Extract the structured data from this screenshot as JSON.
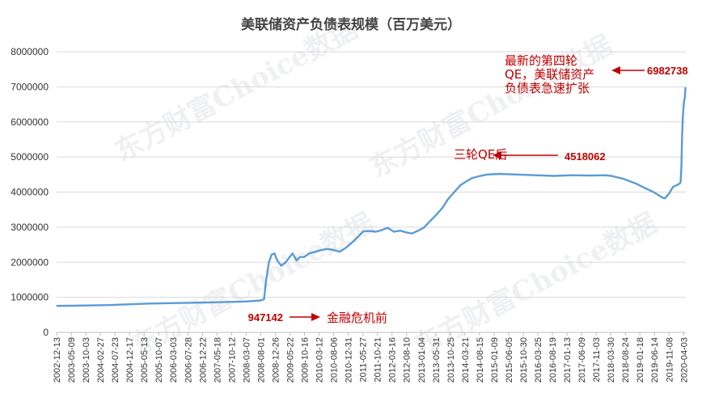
{
  "chart_data": {
    "type": "line",
    "title": "美联储资产负债表规模（百万美元）",
    "xlabel": "",
    "ylabel": "",
    "ylim": [
      0,
      8000000
    ],
    "y_ticks": [
      "0",
      "1000000",
      "2000000",
      "3000000",
      "4000000",
      "5000000",
      "6000000",
      "7000000",
      "8000000"
    ],
    "x_ticks": [
      "2002-12-13",
      "2003-05-09",
      "2003-10-03",
      "2004-02-27",
      "2004-07-23",
      "2004-12-17",
      "2005-05-13",
      "2005-10-07",
      "2006-03-03",
      "2006-07-28",
      "2006-12-22",
      "2007-05-18",
      "2007-10-12",
      "2008-03-07",
      "2008-08-01",
      "2008-12-26",
      "2009-05-22",
      "2009-10-16",
      "2010-03-12",
      "2010-08-06",
      "2010-12-31",
      "2011-05-27",
      "2011-10-21",
      "2012-03-16",
      "2012-08-10",
      "2013-01-04",
      "2013-05-31",
      "2013-10-25",
      "2014-03-21",
      "2014-08-15",
      "2015-01-09",
      "2015-06-05",
      "2015-10-30",
      "2016-03-25",
      "2016-08-19",
      "2017-01-13",
      "2017-06-09",
      "2017-11-03",
      "2018-03-30",
      "2018-08-24",
      "2019-01-18",
      "2019-06-14",
      "2019-11-08",
      "2020-04-03"
    ],
    "grid": true,
    "legend": "none",
    "line_color": "#5b9bd5",
    "series": [
      {
        "x": [
          "2002-12-13",
          "2003-06-01",
          "2004-06-01",
          "2005-06-01",
          "2006-06-01",
          "2007-06-01",
          "2008-03-01",
          "2008-08-01",
          "2008-09-03",
          "2008-09-24",
          "2008-10-22",
          "2008-11-19",
          "2008-12-17",
          "2009-01-14",
          "2009-02-25",
          "2009-04-08",
          "2009-05-20",
          "2009-06-17",
          "2009-07-29",
          "2009-09-02",
          "2009-10-14",
          "2009-12-02",
          "2010-02-03",
          "2010-04-07",
          "2010-06-02",
          "2010-08-04",
          "2010-10-06",
          "2010-12-01",
          "2011-02-02",
          "2011-03-30",
          "2011-06-01",
          "2011-08-03",
          "2011-10-05",
          "2011-12-07",
          "2012-02-01",
          "2012-04-04",
          "2012-06-06",
          "2012-08-08",
          "2012-10-03",
          "2012-12-05",
          "2013-01-30",
          "2013-03-27",
          "2013-06-05",
          "2013-08-07",
          "2013-10-02",
          "2013-12-04",
          "2014-02-05",
          "2014-04-02",
          "2014-06-04",
          "2014-08-06",
          "2014-10-29",
          "2015-03-04",
          "2015-09-02",
          "2016-03-02",
          "2016-09-07",
          "2017-03-01",
          "2017-09-06",
          "2018-01-31",
          "2018-04-04",
          "2018-08-01",
          "2018-12-05",
          "2019-03-06",
          "2019-06-05",
          "2019-08-28",
          "2019-09-25",
          "2019-11-06",
          "2019-12-18",
          "2020-01-29",
          "2020-02-26",
          "2020-03-04",
          "2020-03-11",
          "2020-03-18",
          "2020-03-25",
          "2020-04-01",
          "2020-04-08",
          "2020-04-15",
          "2020-04-22"
        ],
        "values": [
          757000,
          760000,
          780000,
          820000,
          840000,
          860000,
          880000,
          910000,
          947142,
          1480000,
          2000000,
          2220000,
          2250000,
          2050000,
          1900000,
          2000000,
          2150000,
          2250000,
          2050000,
          2150000,
          2150000,
          2250000,
          2300000,
          2350000,
          2380000,
          2350000,
          2300000,
          2400000,
          2550000,
          2700000,
          2880000,
          2890000,
          2870000,
          2920000,
          2980000,
          2870000,
          2900000,
          2850000,
          2820000,
          2900000,
          2980000,
          3150000,
          3350000,
          3550000,
          3800000,
          4000000,
          4200000,
          4300000,
          4400000,
          4450000,
          4500000,
          4518062,
          4500000,
          4480000,
          4460000,
          4480000,
          4470000,
          4480000,
          4460000,
          4380000,
          4250000,
          4120000,
          4000000,
          3850000,
          3820000,
          3950000,
          4150000,
          4200000,
          4250000,
          4300000,
          4700000,
          5500000,
          6100000,
          6400000,
          6600000,
          6700000,
          6982738
        ]
      }
    ],
    "annotations": [
      {
        "value": "947142",
        "text": "金融危机前"
      },
      {
        "value": "4518062",
        "text": "三轮QE后"
      },
      {
        "value": "6982738",
        "lines": [
          "最新的第四轮",
          "QE，美联储资产",
          "负债表急速扩张"
        ]
      }
    ],
    "watermark": "东方财富Choice数据"
  }
}
